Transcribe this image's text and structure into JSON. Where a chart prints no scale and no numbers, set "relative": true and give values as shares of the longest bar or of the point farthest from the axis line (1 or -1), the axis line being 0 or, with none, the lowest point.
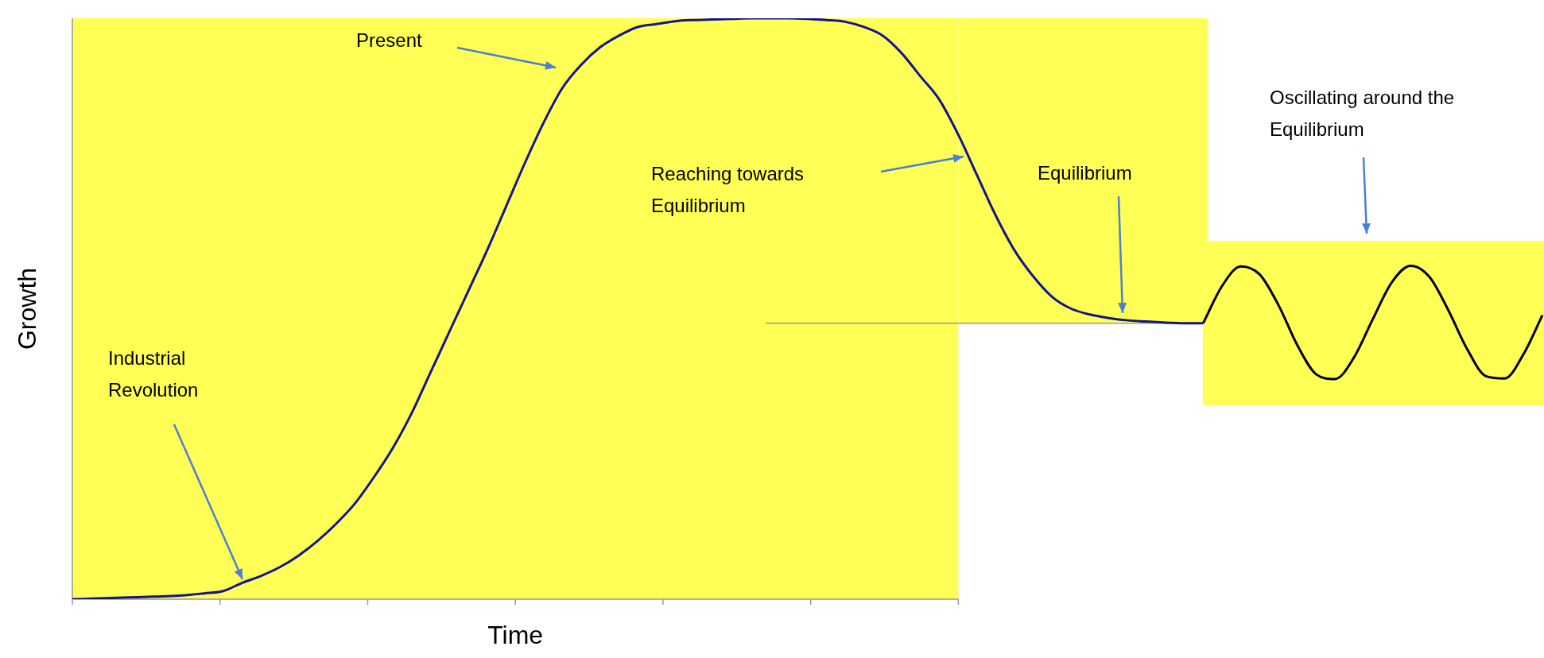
{
  "chart_data": {
    "type": "line",
    "relative": true,
    "xlabel": "Time",
    "ylabel": "Growth",
    "legend": false,
    "grid": false,
    "marker": "none",
    "ref_lines": [
      {
        "axis": "y",
        "value": 0.475,
        "color": "#999999"
      }
    ],
    "bands": [
      {
        "axis": "y",
        "from": 0.334,
        "to": 0.617,
        "color": "#ffff55"
      }
    ],
    "categories": [
      null,
      null,
      null,
      null,
      null,
      null,
      null,
      null,
      null,
      null,
      null,
      null,
      null,
      null,
      null,
      null,
      null,
      null,
      null,
      null,
      null,
      null,
      null,
      null,
      null,
      null,
      null,
      null,
      null,
      null,
      null,
      null,
      null,
      null,
      null,
      null,
      null,
      null,
      null,
      null,
      null,
      null,
      null,
      null,
      null,
      null,
      null,
      null,
      null,
      null,
      null,
      null,
      null,
      null,
      null,
      null,
      null,
      null,
      null,
      null,
      null,
      null,
      null,
      null,
      null,
      null,
      null,
      null,
      null,
      null,
      null,
      null,
      null,
      null,
      null,
      null,
      null,
      null,
      null
    ],
    "series": [
      {
        "color": "#14148c",
        "values": [
          0,
          0.001,
          0.002,
          0.003,
          0.004,
          0.005,
          0.007,
          0.01,
          0.014,
          0.028,
          0.04,
          0.055,
          0.075,
          0.1,
          0.13,
          0.165,
          0.21,
          0.26,
          0.32,
          0.39,
          0.46,
          0.53,
          0.6,
          0.675,
          0.75,
          0.82,
          0.88,
          0.92,
          0.95,
          0.97,
          0.985,
          0.99,
          0.995,
          0.997,
          0.998,
          0.999,
          1,
          1,
          1,
          0.999,
          0.997,
          0.994,
          0.985,
          0.97,
          0.94,
          0.9,
          0.86,
          0.8,
          0.73,
          0.66,
          0.6,
          0.555,
          0.52,
          0.5,
          0.49,
          0.484,
          0.48,
          0.478,
          0.476,
          0.475,
          0.475,
          null,
          null,
          null,
          null,
          null,
          null,
          null,
          null,
          null,
          null,
          null,
          null,
          null,
          null,
          null,
          null,
          null,
          null
        ]
      },
      {
        "color": "#000000",
        "values": [
          null,
          null,
          null,
          null,
          null,
          null,
          null,
          null,
          null,
          null,
          null,
          null,
          null,
          null,
          null,
          null,
          null,
          null,
          null,
          null,
          null,
          null,
          null,
          null,
          null,
          null,
          null,
          null,
          null,
          null,
          null,
          null,
          null,
          null,
          null,
          null,
          null,
          null,
          null,
          null,
          null,
          null,
          null,
          null,
          null,
          null,
          null,
          null,
          null,
          null,
          null,
          null,
          null,
          null,
          null,
          null,
          null,
          null,
          null,
          null,
          0.475,
          0.539,
          0.573,
          0.559,
          0.506,
          0.437,
          0.387,
          0.379,
          0.416,
          0.482,
          0.545,
          0.574,
          0.555,
          0.498,
          0.431,
          0.384,
          0.38,
          0.422,
          0.489
        ]
      }
    ],
    "annotations": [
      "Industrial Revolution",
      "Present",
      "Reaching towards Equilibrium",
      "Equilibrium",
      "Oscillating around the Equilibrium"
    ]
  }
}
